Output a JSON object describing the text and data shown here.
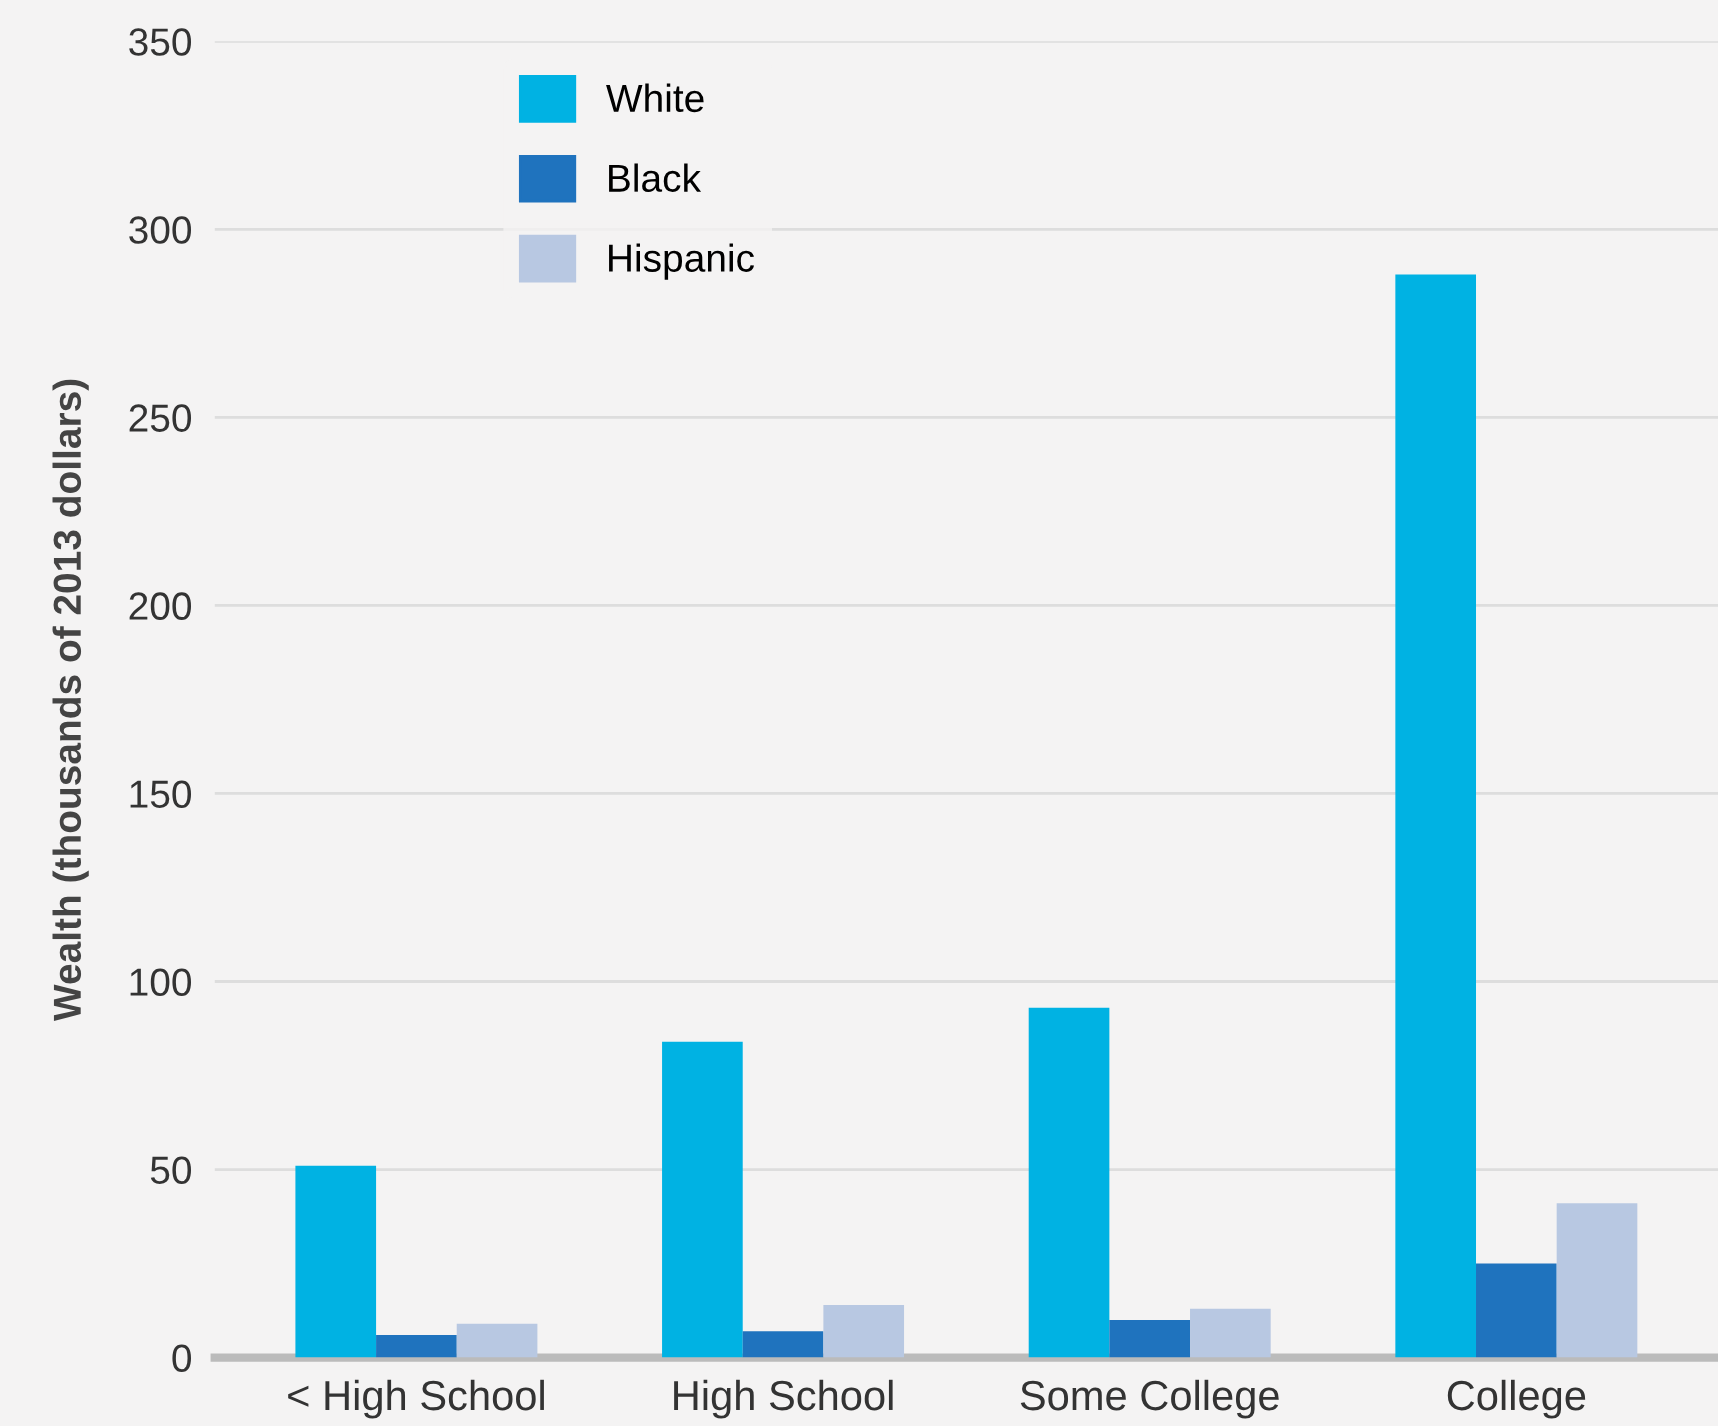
{
  "chart_data": {
    "type": "bar",
    "ylabel": "Wealth (thousands of 2013 dollars)",
    "categories": [
      "< High School",
      "High School",
      "Some College",
      "College"
    ],
    "series": [
      {
        "name": "White",
        "color": "#00b2e3",
        "values": [
          51,
          84,
          93,
          288
        ]
      },
      {
        "name": "Black",
        "color": "#1f73be",
        "values": [
          6,
          7,
          10,
          25
        ]
      },
      {
        "name": "Hispanic",
        "color": "#b8c8e2",
        "values": [
          9,
          14,
          13,
          41
        ]
      }
    ],
    "ylim": [
      0,
      350
    ],
    "yticks": [
      0,
      50,
      100,
      150,
      200,
      250,
      300,
      350
    ],
    "grid": "y",
    "legend": "top left"
  }
}
